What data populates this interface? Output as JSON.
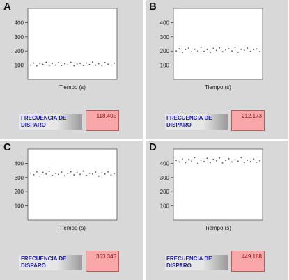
{
  "panels": [
    {
      "letter": "A",
      "x_label": "Tiempo (s)",
      "freq_label": "FRECUENCIA DE DISPARO",
      "freq_value": "118.405",
      "y_ticks": [
        "400",
        "300",
        "200",
        "100"
      ],
      "trace_values": [
        100,
        115,
        95,
        110,
        105,
        120,
        95,
        112,
        100,
        118,
        98,
        110,
        102,
        120,
        96,
        108,
        112,
        98,
        115,
        104,
        122,
        100,
        110,
        96,
        118,
        106,
        100,
        114
      ]
    },
    {
      "letter": "B",
      "x_label": "Tiempo (s)",
      "freq_label": "FRECUENCIA DE DISPARO",
      "freq_value": "212.173",
      "y_ticks": [
        "400",
        "300",
        "200",
        "100"
      ],
      "trace_values": [
        200,
        215,
        190,
        210,
        220,
        195,
        212,
        200,
        225,
        198,
        210,
        190,
        218,
        205,
        222,
        195,
        208,
        215,
        200,
        225,
        192,
        212,
        205,
        220,
        198,
        210,
        214,
        196
      ]
    },
    {
      "letter": "C",
      "x_label": "Tiempo (s)",
      "freq_label": "FRECUENCIA DE DISPARO",
      "freq_value": "353.345",
      "y_ticks": [
        "400",
        "300",
        "200",
        "100"
      ],
      "trace_values": [
        330,
        320,
        340,
        310,
        335,
        325,
        342,
        315,
        330,
        322,
        338,
        312,
        328,
        340,
        318,
        335,
        322,
        345,
        315,
        330,
        325,
        338,
        310,
        332,
        324,
        340,
        318,
        328
      ]
    },
    {
      "letter": "D",
      "x_label": "Tiempo (s)",
      "freq_label": "FRECUENCIA DE DISPARO",
      "freq_value": "449.188",
      "y_ticks": [
        "400",
        "300",
        "200",
        "100"
      ],
      "trace_values": [
        420,
        410,
        430,
        405,
        425,
        415,
        440,
        400,
        422,
        412,
        435,
        405,
        428,
        418,
        438,
        402,
        420,
        432,
        410,
        425,
        415,
        440,
        405,
        422,
        412,
        430,
        408,
        418
      ]
    }
  ],
  "chart_data": {
    "type": "scatter",
    "y_range": [
      0,
      500
    ],
    "y_ticks": [
      100,
      200,
      300,
      400
    ],
    "colors": {
      "trace": "#555555",
      "value_box": "#f8a8a8",
      "label_text": "#2020a0"
    }
  }
}
